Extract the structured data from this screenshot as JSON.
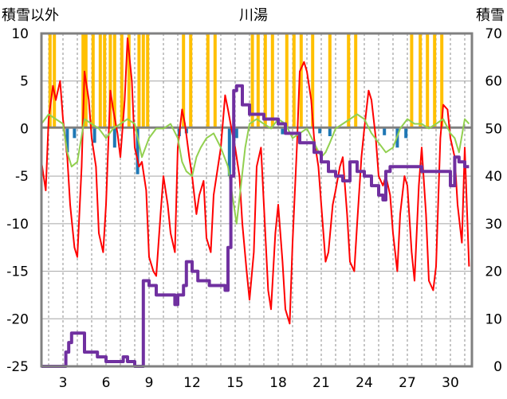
{
  "chart_data": {
    "type": "line",
    "title": "川湯",
    "ylabel_left": "積雪以外",
    "ylabel_right": "積雪",
    "x_ticks": [
      "3",
      "6",
      "9",
      "12",
      "15",
      "18",
      "21",
      "24",
      "27",
      "30"
    ],
    "x_tick_days": [
      3,
      6,
      9,
      12,
      15,
      18,
      21,
      24,
      27,
      30
    ],
    "xlim": [
      1.5,
      31.5
    ],
    "ylim_left": [
      -25,
      10
    ],
    "ylim_right": [
      0,
      70
    ],
    "yticks_left": [
      "10",
      "5",
      "0",
      "-5",
      "-10",
      "-15",
      "-20",
      "-25"
    ],
    "yticks_right": [
      "70",
      "60",
      "50",
      "40",
      "30",
      "20",
      "10",
      "0"
    ],
    "grid": true,
    "series": [
      {
        "key": "precip",
        "kind": "bar",
        "color": "#FFC000",
        "x": [
          2.1,
          2.4,
          4.4,
          4.6,
          5.1,
          5.6,
          5.9,
          6.3,
          6.6,
          7.1,
          7.6,
          8.3,
          8.6,
          8.9,
          11.4,
          11.9,
          13.1,
          13.6,
          16.2,
          16.6,
          17.1,
          17.6,
          18.6,
          19.1,
          19.6,
          20.4,
          21.6,
          22.9,
          23.4,
          27.3,
          27.9,
          28.4,
          28.9,
          29.4
        ],
        "values": [
          10,
          10,
          10,
          10,
          10,
          10,
          10,
          10,
          10,
          10,
          10,
          10,
          10,
          10,
          10,
          10,
          10,
          10,
          10,
          10,
          10,
          10,
          10,
          10,
          10,
          10,
          10,
          10,
          10,
          10,
          10,
          10,
          10,
          10
        ],
        "axis": "left"
      },
      {
        "key": "sunshine",
        "kind": "bar",
        "color": "#1F77B4",
        "x": [
          3.3,
          3.8,
          5.2,
          6.6,
          8.2,
          11.1,
          11.6,
          14.6,
          14.9,
          15.1,
          18.3,
          20.9,
          21.6,
          25.4,
          26.3,
          26.9
        ],
        "values": [
          -2.5,
          -1.0,
          -1.5,
          -2.0,
          -4.8,
          -0.8,
          -0.5,
          -5.0,
          -3.0,
          -1.0,
          -0.6,
          -0.5,
          -0.8,
          -0.7,
          -2.0,
          -1.0
        ],
        "axis": "left"
      },
      {
        "key": "max_temp",
        "kind": "line",
        "color": "#FF0000",
        "axis": "left",
        "x": [
          1.5,
          1.8,
          2.0,
          2.3,
          2.5,
          2.8,
          3.0,
          3.3,
          3.5,
          3.8,
          4.0,
          4.3,
          4.5,
          4.8,
          5.0,
          5.3,
          5.5,
          5.8,
          6.0,
          6.3,
          6.5,
          6.8,
          7.0,
          7.3,
          7.5,
          7.8,
          8.0,
          8.3,
          8.5,
          8.8,
          9.0,
          9.3,
          9.5,
          9.8,
          10.0,
          10.3,
          10.5,
          10.8,
          11.0,
          11.3,
          11.5,
          11.8,
          12.0,
          12.3,
          12.5,
          12.8,
          13.0,
          13.3,
          13.5,
          13.8,
          14.0,
          14.3,
          14.5,
          14.8,
          15.0,
          15.3,
          15.5,
          15.8,
          16.0,
          16.3,
          16.5,
          16.8,
          17.0,
          17.3,
          17.5,
          17.8,
          18.0,
          18.3,
          18.5,
          18.8,
          19.0,
          19.3,
          19.5,
          19.8,
          20.0,
          20.3,
          20.5,
          20.8,
          21.0,
          21.3,
          21.5,
          21.8,
          22.0,
          22.3,
          22.5,
          22.8,
          23.0,
          23.3,
          23.5,
          23.8,
          24.0,
          24.3,
          24.5,
          24.8,
          25.0,
          25.3,
          25.5,
          25.8,
          26.0,
          26.3,
          26.5,
          26.8,
          27.0,
          27.3,
          27.5,
          27.8,
          28.0,
          28.3,
          28.5,
          28.8,
          29.0,
          29.3,
          29.5,
          29.8,
          30.0,
          30.3,
          30.5,
          30.8,
          31.0,
          31.3
        ],
        "y": [
          -3.5,
          -6.5,
          1.0,
          4.5,
          3.0,
          5.0,
          1.0,
          -3.0,
          -8.0,
          -12.5,
          -13.5,
          -4.0,
          6.0,
          3.0,
          -1.0,
          -4.0,
          -11.0,
          -13.0,
          -8.0,
          4.0,
          2.0,
          -0.5,
          -3.0,
          3.0,
          9.5,
          5.0,
          -2.0,
          -4.0,
          -3.5,
          -6.5,
          -13.5,
          -15.0,
          -15.5,
          -9.0,
          -5.0,
          -8.0,
          -11.0,
          -13.0,
          -2.0,
          2.0,
          0.5,
          -3.0,
          -5.0,
          -9.0,
          -7.0,
          -5.5,
          -11.5,
          -13.0,
          -7.0,
          -4.0,
          -2.0,
          3.5,
          2.0,
          -0.5,
          -2.0,
          -5.0,
          -10.0,
          -15.0,
          -18.0,
          -13.0,
          -4.0,
          -2.0,
          -8.0,
          -17.0,
          -19.0,
          -11.0,
          -8.0,
          -14.0,
          -19.0,
          -20.5,
          -12.0,
          -2.0,
          6.0,
          7.0,
          6.0,
          3.0,
          -1.0,
          -4.0,
          -8.0,
          -14.0,
          -13.0,
          -8.0,
          -6.5,
          -4.0,
          -3.0,
          -9.0,
          -14.0,
          -15.0,
          -10.0,
          -3.0,
          0.0,
          4.0,
          3.0,
          -1.0,
          -5.0,
          -6.0,
          -5.0,
          -7.0,
          -11.0,
          -15.0,
          -9.0,
          -5.0,
          -6.0,
          -13.0,
          -16.0,
          -6.0,
          -2.0,
          -9.0,
          -16.0,
          -17.0,
          -14.5,
          -1.0,
          2.5,
          2.0,
          -1.0,
          -3.0,
          -8.0,
          -12.0,
          -2.0,
          -14.5
        ]
      },
      {
        "key": "min_temp",
        "kind": "line",
        "color": "#92D050",
        "axis": "left",
        "x": [
          1.5,
          2.0,
          2.5,
          3.0,
          3.3,
          3.6,
          4.0,
          4.5,
          5.0,
          5.5,
          6.0,
          6.5,
          7.0,
          7.5,
          8.0,
          8.5,
          9.0,
          9.5,
          10.0,
          10.5,
          11.0,
          11.3,
          11.6,
          12.0,
          12.3,
          12.6,
          13.0,
          13.5,
          14.0,
          14.5,
          14.8,
          15.1,
          15.4,
          15.7,
          16.0,
          16.5,
          17.0,
          17.5,
          18.0,
          18.5,
          19.0,
          19.5,
          20.0,
          20.5,
          21.0,
          21.3,
          21.6,
          22.0,
          22.5,
          23.0,
          23.5,
          24.0,
          24.5,
          25.0,
          25.5,
          26.0,
          26.5,
          27.0,
          27.5,
          28.0,
          28.5,
          29.0,
          29.5,
          30.0,
          30.3,
          30.6,
          31.0,
          31.3
        ],
        "y": [
          0.5,
          1.5,
          1.0,
          0.5,
          -2.5,
          -4.0,
          -3.5,
          1.0,
          0.5,
          0.0,
          -1.0,
          0.0,
          0.5,
          1.0,
          0.5,
          -3.0,
          -1.0,
          0.0,
          0.0,
          0.5,
          -1.0,
          -3.5,
          -4.5,
          -5.0,
          -3.0,
          -2.0,
          -1.0,
          -0.5,
          -2.0,
          -4.0,
          -7.0,
          -10.0,
          -6.0,
          -2.0,
          0.5,
          1.0,
          0.5,
          0.0,
          1.0,
          0.5,
          -1.0,
          -0.5,
          0.0,
          -1.5,
          -3.0,
          -2.5,
          -1.5,
          0.0,
          0.5,
          1.0,
          1.5,
          1.0,
          -0.5,
          -1.5,
          -2.5,
          -2.0,
          0.0,
          1.0,
          0.5,
          0.5,
          0.0,
          0.5,
          1.0,
          -0.5,
          -1.0,
          -2.5,
          1.0,
          0.5
        ]
      },
      {
        "key": "snow_depth",
        "kind": "line",
        "color": "#7030A0",
        "axis": "right",
        "x": [
          1.5,
          2.5,
          3.0,
          3.2,
          3.4,
          3.6,
          4.5,
          5.0,
          5.4,
          5.6,
          6.0,
          7.0,
          7.2,
          7.5,
          8.0,
          8.2,
          8.4,
          8.6,
          9.0,
          9.3,
          9.5,
          10.0,
          10.8,
          11.0,
          11.2,
          11.4,
          11.6,
          12.0,
          12.4,
          13.0,
          13.2,
          13.5,
          14.0,
          14.3,
          14.5,
          14.7,
          14.9,
          15.1,
          15.5,
          16.0,
          17.0,
          18.0,
          18.5,
          19.0,
          19.5,
          20.0,
          20.5,
          21.0,
          21.5,
          22.0,
          22.5,
          23.0,
          23.5,
          24.0,
          24.5,
          25.0,
          25.3,
          25.5,
          25.8,
          26.0,
          26.5,
          27.0,
          27.5,
          28.0,
          28.5,
          29.0,
          29.5,
          30.0,
          30.3,
          30.6,
          31.0,
          31.3
        ],
        "y": [
          0,
          0,
          0,
          3,
          5,
          7,
          3,
          3,
          2,
          2,
          1,
          1,
          2,
          1,
          0,
          0,
          0,
          18,
          17,
          17,
          15,
          15,
          13,
          15,
          15,
          17,
          22,
          20,
          18,
          18,
          17,
          17,
          17,
          16,
          25,
          40,
          58,
          59,
          55,
          53,
          52,
          51,
          49,
          49,
          47,
          47,
          45,
          43,
          41,
          40,
          39,
          43,
          41,
          40,
          38,
          36,
          35,
          41,
          42,
          42,
          42,
          42,
          42,
          41,
          41,
          41,
          41,
          38,
          44,
          43,
          42,
          42
        ]
      }
    ]
  }
}
